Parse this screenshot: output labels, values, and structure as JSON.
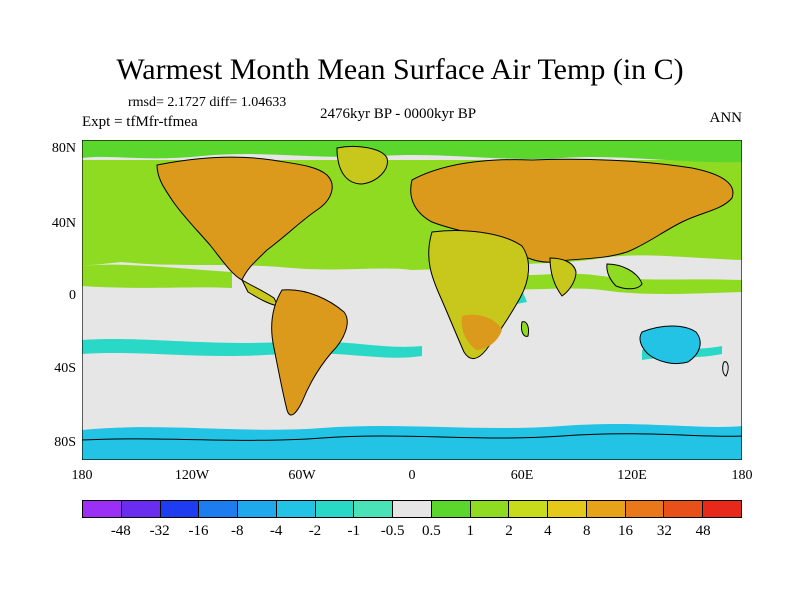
{
  "title": "Warmest Month Mean Surface Air Temp (in C)",
  "stats": "rmsd= 2.1727 diff= 1.04633",
  "expt": "Expt = tfMfr-tfmea",
  "period": "2476kyr BP - 0000kyr BP",
  "season": "ANN",
  "axes": {
    "y_ticks": [
      "80N",
      "40N",
      "0",
      "40S",
      "80S"
    ],
    "x_ticks": [
      "180",
      "120W",
      "60W",
      "0",
      "60E",
      "120E",
      "180"
    ]
  },
  "colorbar": {
    "labels": [
      "-48",
      "-32",
      "-16",
      "-8",
      "-4",
      "-2",
      "-1",
      "-0.5",
      "0.5",
      "1",
      "2",
      "4",
      "8",
      "16",
      "32",
      "48"
    ],
    "colors": [
      "#9b2ff5",
      "#6a2df0",
      "#1e3cf0",
      "#1d7cee",
      "#1fa8ec",
      "#22c3e4",
      "#29d8c6",
      "#4ae3b8",
      "#e6e6e6",
      "#5ad62c",
      "#8fdb22",
      "#c8dc1b",
      "#e6c81a",
      "#e6a31a",
      "#e8781a",
      "#e8501a",
      "#e8281a"
    ]
  },
  "colors": {
    "land_warm": "#dc9a1c",
    "land_mid": "#c8c81c",
    "land_low": "#9cd620",
    "ocean_pos": "#8fdb22",
    "ocean_neutral": "#e6e6e6",
    "ocean_neg": "#29d8c6",
    "antarctic": "#22c3e4",
    "coast": "#000000"
  }
}
